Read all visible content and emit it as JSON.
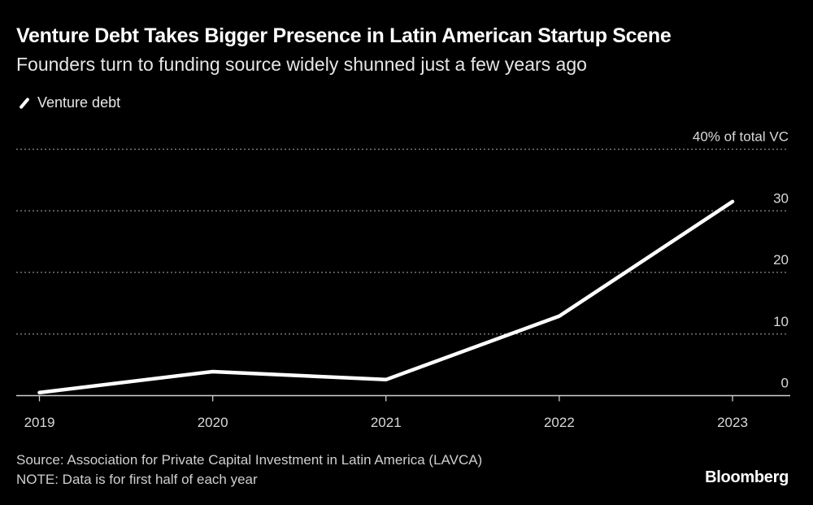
{
  "chart_data": {
    "type": "line",
    "title": "Venture Debt Takes Bigger Presence in Latin American Startup Scene",
    "subtitle": "Founders turn to funding source widely shunned just a few years ago",
    "categories": [
      "2019",
      "2020",
      "2021",
      "2022",
      "2023"
    ],
    "series": [
      {
        "name": "Venture debt",
        "values": [
          0.5,
          3.9,
          2.6,
          12.9,
          31.5
        ],
        "color": "#ffffff"
      }
    ],
    "yticks": [
      0,
      10,
      20,
      30,
      40
    ],
    "ytick_labels": [
      "0",
      "10",
      "20",
      "30",
      "40% of total VC"
    ],
    "ylim": [
      0,
      40
    ],
    "grid": true,
    "y_axis_side": "right",
    "legend_position": "top-left",
    "xlabel": "",
    "ylabel": ""
  },
  "footer": {
    "source": "Source: Association for Private Capital Investment in Latin America (LAVCA)",
    "note": "NOTE: Data is for first half of each year"
  },
  "brand": "Bloomberg",
  "colors": {
    "background": "#000000",
    "line": "#ffffff",
    "grid": "#8a8a8a"
  }
}
